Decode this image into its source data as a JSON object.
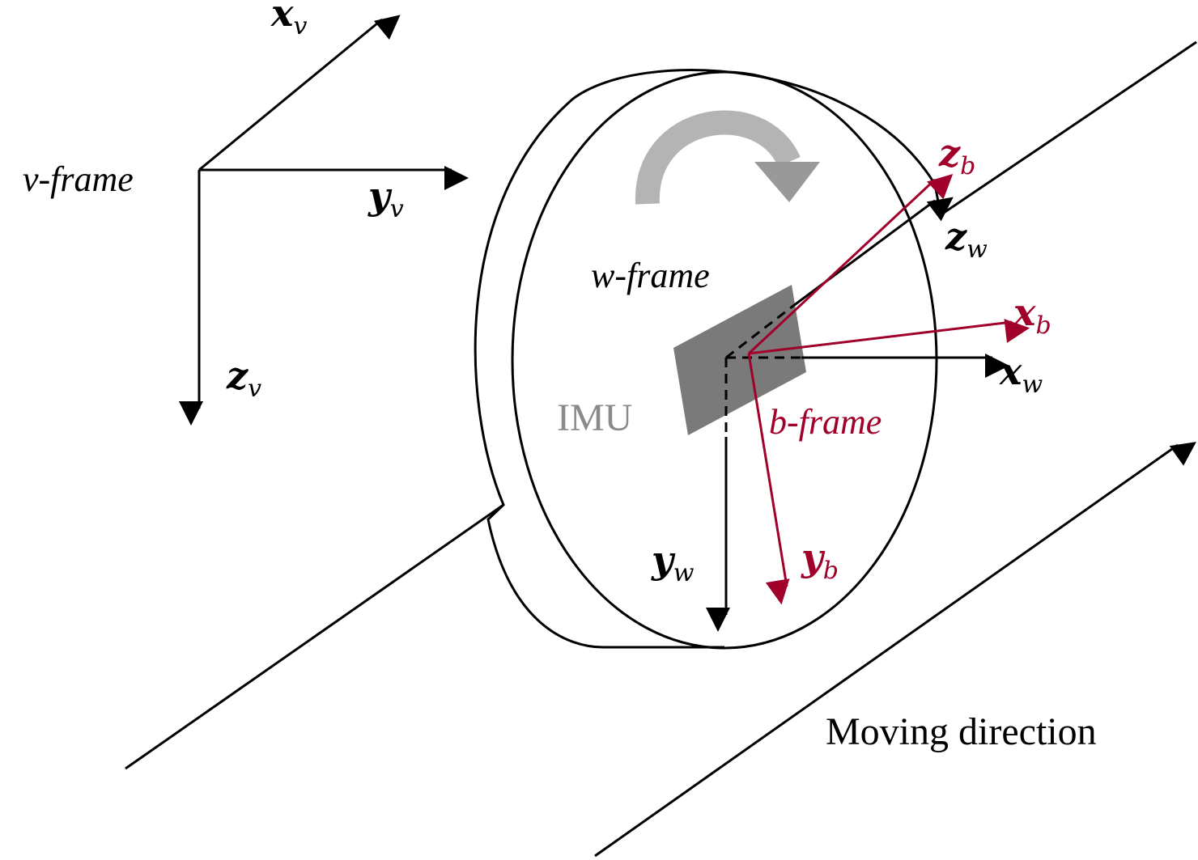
{
  "colors": {
    "ink": "#000000",
    "accent": "#a0002a",
    "imu_fill": "#7a7a7a",
    "imu_text": "#8a8a8a",
    "rotation_arrow": "#b4b4b4"
  },
  "labels": {
    "v_frame": "v-frame",
    "w_frame": "w-frame",
    "b_frame": "b-frame",
    "imu": "IMU",
    "moving_direction": "Moving direction"
  },
  "axes": {
    "x_v": {
      "symbol": "x",
      "sub": "v"
    },
    "y_v": {
      "symbol": "y",
      "sub": "v"
    },
    "z_v": {
      "symbol": "z",
      "sub": "v"
    },
    "x_w": {
      "symbol": "x",
      "sub": "w"
    },
    "y_w": {
      "symbol": "y",
      "sub": "w"
    },
    "z_w": {
      "symbol": "z",
      "sub": "w"
    },
    "x_b": {
      "symbol": "x",
      "sub": "b"
    },
    "y_b": {
      "symbol": "y",
      "sub": "b"
    },
    "z_b": {
      "symbol": "z",
      "sub": "b"
    }
  }
}
